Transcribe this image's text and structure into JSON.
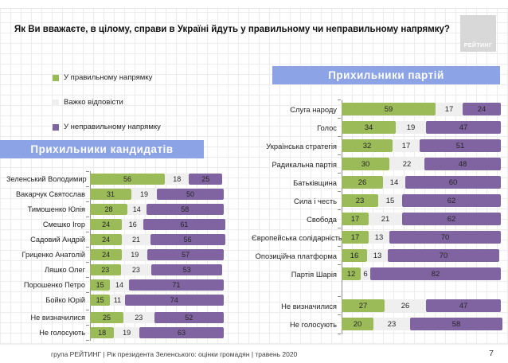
{
  "page": {
    "title": "Як Ви вважаєте, в цілому, справи в Україні йдуть у правильному чи неправильному напрямку?",
    "logo_text": "РЕЙТИНГ",
    "footer_text": "група РЕЙТИНГ  |  Рік президента Зеленського: оцінки громадян  |  травень 2020",
    "page_number": "7"
  },
  "legend": {
    "items": [
      {
        "label": "У правильному напрямку",
        "color": "#9bbb59"
      },
      {
        "label": "Важко відповісти",
        "color": "#efefef"
      },
      {
        "label": "У неправильному напрямку",
        "color": "#8064a2"
      }
    ]
  },
  "colors": {
    "right_direction": "#9bbb59",
    "hard_to_answer": "#efefef",
    "wrong_direction": "#8064a2",
    "banner_blue": "#8ca4e6",
    "axis_gray": "#8f8f8f"
  },
  "chart_data": [
    {
      "id": "candidates",
      "type": "bar",
      "stacked": true,
      "orientation": "horizontal",
      "title": "Прихильники кандидатів",
      "series_labels": [
        "У правильному напрямку",
        "Важко відповісти",
        "У неправильному напрямку"
      ],
      "colors": [
        "#9bbb59",
        "#efefef",
        "#8064a2"
      ],
      "xlim": [
        0,
        100
      ],
      "grid": true,
      "legend_position": "top-left",
      "rows": [
        {
          "label": "Зеленський Володимир",
          "values": [
            56,
            18,
            25
          ]
        },
        {
          "label": "Вакарчук Святослав",
          "values": [
            31,
            19,
            50
          ]
        },
        {
          "label": "Тимошенко Юлія",
          "values": [
            28,
            14,
            58
          ]
        },
        {
          "label": "Смешко Ігор",
          "values": [
            24,
            16,
            61
          ]
        },
        {
          "label": "Садовий Андрій",
          "values": [
            24,
            21,
            56
          ]
        },
        {
          "label": "Гриценко Анатолій",
          "values": [
            24,
            19,
            57
          ]
        },
        {
          "label": "Ляшко Олег",
          "values": [
            23,
            23,
            53
          ]
        },
        {
          "label": "Порошенко Петро",
          "values": [
            15,
            14,
            71
          ]
        },
        {
          "label": "Бойко Юрій",
          "values": [
            15,
            11,
            74
          ]
        },
        {
          "label": "Не визначилися",
          "values": [
            25,
            23,
            52
          ],
          "gap_before": true
        },
        {
          "label": "Не голосують",
          "values": [
            18,
            19,
            63
          ]
        }
      ]
    },
    {
      "id": "parties",
      "type": "bar",
      "stacked": true,
      "orientation": "horizontal",
      "title": "Прихильники партій",
      "series_labels": [
        "У правильному напрямку",
        "Важко відповісти",
        "У неправильному напрямку"
      ],
      "colors": [
        "#9bbb59",
        "#efefef",
        "#8064a2"
      ],
      "xlim": [
        0,
        100
      ],
      "grid": true,
      "legend_position": "top-left",
      "rows": [
        {
          "label": "Слуга народу",
          "values": [
            59,
            17,
            24
          ]
        },
        {
          "label": "Голос",
          "values": [
            34,
            19,
            47
          ]
        },
        {
          "label": "Українська стратегія",
          "values": [
            32,
            17,
            51
          ]
        },
        {
          "label": "Радикальна партія",
          "values": [
            30,
            22,
            48
          ]
        },
        {
          "label": "Батьківщина",
          "values": [
            26,
            14,
            60
          ]
        },
        {
          "label": "Сила і честь",
          "values": [
            23,
            15,
            62
          ]
        },
        {
          "label": "Свобода",
          "values": [
            17,
            21,
            62
          ]
        },
        {
          "label": "Європейська солідарність",
          "values": [
            17,
            13,
            70
          ]
        },
        {
          "label": "Опозиційна платформа",
          "values": [
            16,
            13,
            70
          ]
        },
        {
          "label": "Партія Шарія",
          "values": [
            12,
            6,
            82
          ]
        },
        {
          "label": "Не визначилися",
          "values": [
            27,
            26,
            47
          ],
          "gap_before": true
        },
        {
          "label": "Не голосують",
          "values": [
            20,
            23,
            58
          ]
        }
      ]
    }
  ]
}
